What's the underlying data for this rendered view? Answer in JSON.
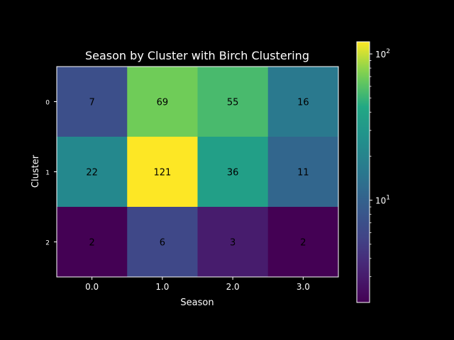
{
  "chart_data": {
    "type": "heatmap",
    "title": "Season by Cluster with Birch Clustering",
    "xlabel": "Season",
    "ylabel": "Cluster",
    "x_categories": [
      "0.0",
      "1.0",
      "2.0",
      "3.0"
    ],
    "y_categories": [
      "0",
      "1",
      "2"
    ],
    "values": [
      [
        7,
        69,
        55,
        16
      ],
      [
        22,
        121,
        36,
        11
      ],
      [
        2,
        6,
        3,
        2
      ]
    ],
    "colorbar": {
      "scale": "log",
      "range": [
        2,
        121
      ],
      "colormap": "viridis",
      "tick_labels": [
        {
          "value": 10,
          "base": "10",
          "exp": "1"
        },
        {
          "value": 100,
          "base": "10",
          "exp": "2"
        }
      ]
    },
    "colors": {
      "background": "#000000",
      "foreground": "#ffffff"
    }
  }
}
